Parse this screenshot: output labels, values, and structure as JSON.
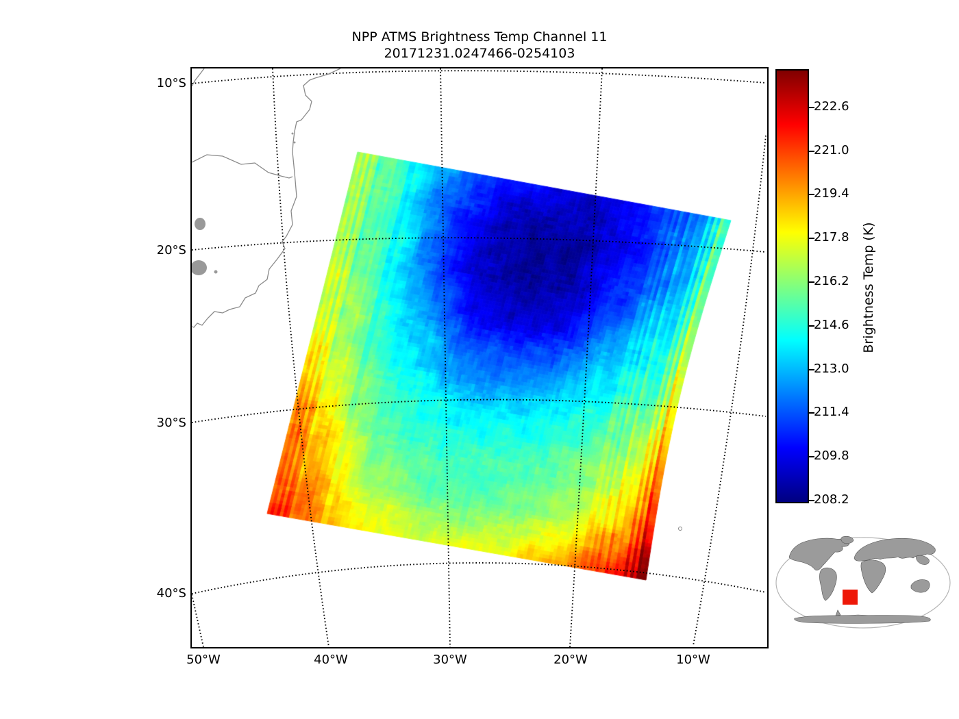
{
  "title": {
    "line1": "NPP ATMS Brightness Temp Channel 11",
    "line2": "20171231.0247466-0254103"
  },
  "colorbar": {
    "label": "Brightness Temp (K)",
    "ticks": [
      "222.6",
      "221.0",
      "219.4",
      "217.8",
      "216.2",
      "214.6",
      "213.0",
      "211.4",
      "209.8",
      "208.2"
    ],
    "vmin": 208.15,
    "vmax": 223.95,
    "colormap": "jet"
  },
  "map": {
    "yticks": [
      "10°S",
      "20°S",
      "30°S",
      "40°S"
    ],
    "xticks": [
      "50°W",
      "40°W",
      "30°W",
      "20°W",
      "10°W"
    ],
    "coastline_color": "#8a8a8a",
    "gridline_style": "dotted-black"
  },
  "chart_data": {
    "type": "heatmap",
    "title": "NPP ATMS Brightness Temp Channel 11",
    "subtitle": "20171231.0247466-0254103",
    "colorbar_label": "Brightness Temp (K)",
    "colormap": "jet",
    "value_range": [
      208.15,
      223.95
    ],
    "colorbar_ticks": [
      222.6,
      221.0,
      219.4,
      217.8,
      216.2,
      214.6,
      213.0,
      211.4,
      209.8,
      208.2
    ],
    "lat_gridlines_deg": [
      -10,
      -20,
      -30,
      -40
    ],
    "lon_gridlines_deg": [
      -50,
      -40,
      -30,
      -20,
      -10
    ],
    "grid_note": "Brightness temperature (K) sampled on a 9x9 grid across the satellite swath, rows top-to-bottom (north-to-south along track), columns left-to-right (west-to-east across track). Cold core ~208.5 K top-center, warm scan edges, hottest ~223.5 K at bottom-right corner.",
    "grid": [
      [
        216.8,
        214.6,
        212.6,
        210.8,
        209.8,
        209.4,
        210.4,
        212.0,
        213.8
      ],
      [
        217.0,
        214.6,
        211.6,
        209.5,
        208.7,
        208.6,
        209.8,
        211.8,
        214.2
      ],
      [
        217.3,
        214.9,
        211.9,
        209.3,
        208.5,
        208.7,
        210.4,
        212.6,
        214.8
      ],
      [
        217.7,
        215.3,
        212.9,
        210.6,
        209.3,
        209.8,
        211.8,
        213.8,
        215.6
      ],
      [
        218.4,
        215.7,
        213.9,
        212.4,
        211.8,
        212.4,
        213.5,
        214.9,
        216.4
      ],
      [
        219.6,
        216.6,
        214.9,
        213.9,
        213.7,
        214.1,
        214.8,
        216.1,
        217.6
      ],
      [
        220.6,
        217.6,
        215.7,
        214.9,
        214.9,
        215.1,
        215.7,
        217.1,
        219.0
      ],
      [
        221.0,
        218.6,
        216.5,
        215.7,
        215.7,
        215.9,
        216.7,
        218.7,
        220.8
      ],
      [
        221.6,
        219.8,
        218.2,
        217.3,
        217.5,
        218.0,
        219.3,
        221.3,
        223.0
      ]
    ]
  },
  "inset": {
    "description": "world-map locator",
    "land_color": "#9b9b9b",
    "swath_box_color": "#ee1808"
  }
}
